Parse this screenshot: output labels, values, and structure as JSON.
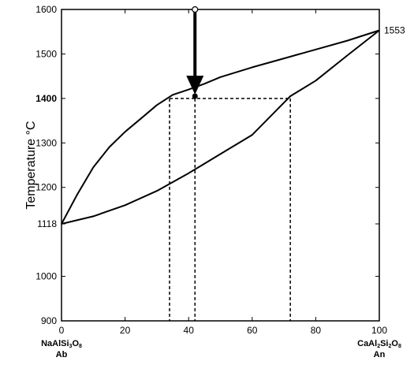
{
  "chart_data": {
    "type": "line",
    "title": "",
    "ylabel": "Temperature °C",
    "xlim": [
      0,
      100
    ],
    "ylim": [
      900,
      1600
    ],
    "x_ticks": [
      0,
      20,
      40,
      60,
      80,
      100
    ],
    "y_ticks": [
      900,
      1000,
      1118,
      1200,
      1300,
      1400,
      1500,
      1600
    ],
    "highlight_tick": {
      "value": 1400,
      "color": "#8b0000"
    },
    "endpoint_label": "1553",
    "x_end_labels": {
      "left": {
        "formula": "NaAlSi",
        "sub1": "3",
        "rest": "O",
        "sub2": "8",
        "abbr": "Ab"
      },
      "right": {
        "formula": "CaAl",
        "sub1": "2",
        "mid": "Si",
        "sub2": "2",
        "rest": "O",
        "sub3": "8",
        "abbr": "An"
      }
    },
    "series": [
      {
        "role": "liquidus",
        "x": [
          0,
          5,
          10,
          15,
          20,
          25,
          30,
          35,
          40,
          45,
          50,
          60,
          70,
          80,
          90,
          100
        ],
        "y": [
          1118,
          1185,
          1245,
          1290,
          1325,
          1355,
          1385,
          1408,
          1420,
          1433,
          1448,
          1470,
          1490,
          1510,
          1530,
          1553
        ]
      },
      {
        "role": "solidus",
        "x": [
          0,
          10,
          20,
          30,
          40,
          50,
          60,
          72,
          80,
          90,
          100
        ],
        "y": [
          1118,
          1135,
          1160,
          1192,
          1232,
          1275,
          1318,
          1405,
          1440,
          1497,
          1553
        ]
      }
    ],
    "tie_line": {
      "temperature": 1400,
      "x_left": 34,
      "x_bulk": 42,
      "x_right": 72
    },
    "cooling_path": {
      "x": 42,
      "y_start": 1600,
      "y_end": 1405
    },
    "colors": {
      "line": "#000000",
      "highlight": "#8b0000"
    }
  }
}
